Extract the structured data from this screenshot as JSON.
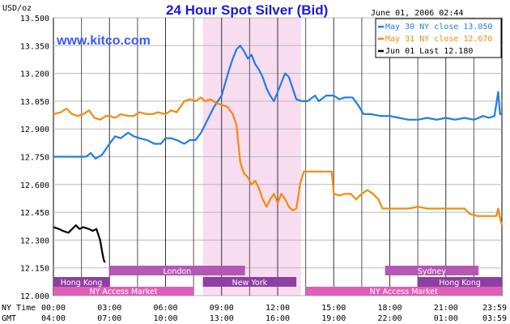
{
  "header": {
    "unit_label": "USD/oz",
    "title": "24 Hour Spot Silver (Bid)",
    "timestamp": "June 01, 2006 02:44",
    "website": "www.kitco.com"
  },
  "chart_data": {
    "type": "line",
    "title": "24 Hour Spot Silver (Bid)",
    "ylabel": "USD/oz",
    "ylim": [
      12.0,
      13.5
    ],
    "y_ticks": [
      "13.500",
      "13.350",
      "13.200",
      "13.050",
      "12.900",
      "12.750",
      "12.600",
      "12.450",
      "12.300",
      "12.150",
      "12.000"
    ],
    "x_axis_labels": {
      "ny_time_label": "NY Time",
      "gmt_label": "GMT",
      "ny_time": [
        "00:00",
        "03:00",
        "06:00",
        "09:00",
        "12:00",
        "15:00",
        "18:00",
        "21:00",
        "23:59"
      ],
      "gmt": [
        "04:00",
        "07:00",
        "10:00",
        "13:00",
        "16:00",
        "19:00",
        "22:00",
        "01:00",
        "03:59"
      ]
    },
    "xlim_hours": [
      0,
      24
    ],
    "highlight_band_hours": [
      8.0,
      13.25
    ],
    "series": [
      {
        "name": "May 30 NY close 13.050",
        "color": "#1e7ee6",
        "points": [
          [
            0,
            12.75
          ],
          [
            1.0,
            12.75
          ],
          [
            1.75,
            12.75
          ],
          [
            2.0,
            12.77
          ],
          [
            2.25,
            12.74
          ],
          [
            2.6,
            12.76
          ],
          [
            3.0,
            12.82
          ],
          [
            3.3,
            12.86
          ],
          [
            3.6,
            12.85
          ],
          [
            4.0,
            12.88
          ],
          [
            4.3,
            12.86
          ],
          [
            4.6,
            12.85
          ],
          [
            5.0,
            12.84
          ],
          [
            5.4,
            12.82
          ],
          [
            5.75,
            12.82
          ],
          [
            6.0,
            12.85
          ],
          [
            6.3,
            12.85
          ],
          [
            6.6,
            12.84
          ],
          [
            7.0,
            12.82
          ],
          [
            7.3,
            12.84
          ],
          [
            7.6,
            12.84
          ],
          [
            7.9,
            12.88
          ],
          [
            8.1,
            12.92
          ],
          [
            8.4,
            12.98
          ],
          [
            8.6,
            13.02
          ],
          [
            8.8,
            13.05
          ],
          [
            9.0,
            13.08
          ],
          [
            9.2,
            13.15
          ],
          [
            9.4,
            13.22
          ],
          [
            9.6,
            13.28
          ],
          [
            9.8,
            13.33
          ],
          [
            10.0,
            13.35
          ],
          [
            10.2,
            13.32
          ],
          [
            10.4,
            13.28
          ],
          [
            10.6,
            13.3
          ],
          [
            10.8,
            13.25
          ],
          [
            11.0,
            13.22
          ],
          [
            11.2,
            13.18
          ],
          [
            11.4,
            13.12
          ],
          [
            11.6,
            13.08
          ],
          [
            11.8,
            13.05
          ],
          [
            12.0,
            13.1
          ],
          [
            12.2,
            13.15
          ],
          [
            12.4,
            13.2
          ],
          [
            12.6,
            13.18
          ],
          [
            12.8,
            13.12
          ],
          [
            13.0,
            13.06
          ],
          [
            13.3,
            13.05
          ],
          [
            13.6,
            13.05
          ],
          [
            14.0,
            13.08
          ],
          [
            14.2,
            13.05
          ],
          [
            14.6,
            13.08
          ],
          [
            15.0,
            13.08
          ],
          [
            15.3,
            13.06
          ],
          [
            15.6,
            13.07
          ],
          [
            16.0,
            13.07
          ],
          [
            16.3,
            13.03
          ],
          [
            16.6,
            12.98
          ],
          [
            17.0,
            12.98
          ],
          [
            17.5,
            12.97
          ],
          [
            18.0,
            12.97
          ],
          [
            18.5,
            12.96
          ],
          [
            19.0,
            12.95
          ],
          [
            19.5,
            12.95
          ],
          [
            20.0,
            12.96
          ],
          [
            20.5,
            12.95
          ],
          [
            21.0,
            12.96
          ],
          [
            21.5,
            12.95
          ],
          [
            22.0,
            12.96
          ],
          [
            22.5,
            12.95
          ],
          [
            23.0,
            12.97
          ],
          [
            23.3,
            12.96
          ],
          [
            23.6,
            12.97
          ],
          [
            23.8,
            13.1
          ],
          [
            23.9,
            12.98
          ],
          [
            24.0,
            12.98
          ]
        ]
      },
      {
        "name": "May 31 NY close 12.670",
        "color": "#f58a0b",
        "points": [
          [
            0,
            12.98
          ],
          [
            0.4,
            12.99
          ],
          [
            0.7,
            13.01
          ],
          [
            1.0,
            12.98
          ],
          [
            1.3,
            12.97
          ],
          [
            1.6,
            12.98
          ],
          [
            1.9,
            13.0
          ],
          [
            2.2,
            12.96
          ],
          [
            2.5,
            12.95
          ],
          [
            2.8,
            12.97
          ],
          [
            3.0,
            12.97
          ],
          [
            3.3,
            12.96
          ],
          [
            3.6,
            12.98
          ],
          [
            4.0,
            12.97
          ],
          [
            4.3,
            12.97
          ],
          [
            4.6,
            12.99
          ],
          [
            5.0,
            12.98
          ],
          [
            5.3,
            12.98
          ],
          [
            5.6,
            12.99
          ],
          [
            6.0,
            12.98
          ],
          [
            6.3,
            13.0
          ],
          [
            6.6,
            12.99
          ],
          [
            7.0,
            13.05
          ],
          [
            7.3,
            13.06
          ],
          [
            7.6,
            13.05
          ],
          [
            7.9,
            13.07
          ],
          [
            8.1,
            13.05
          ],
          [
            8.4,
            13.06
          ],
          [
            8.7,
            13.04
          ],
          [
            9.0,
            13.03
          ],
          [
            9.3,
            13.02
          ],
          [
            9.6,
            12.98
          ],
          [
            9.8,
            12.92
          ],
          [
            10.0,
            12.72
          ],
          [
            10.2,
            12.66
          ],
          [
            10.4,
            12.64
          ],
          [
            10.6,
            12.6
          ],
          [
            10.8,
            12.62
          ],
          [
            11.0,
            12.58
          ],
          [
            11.2,
            12.52
          ],
          [
            11.4,
            12.48
          ],
          [
            11.6,
            12.52
          ],
          [
            11.8,
            12.55
          ],
          [
            12.0,
            12.5
          ],
          [
            12.2,
            12.55
          ],
          [
            12.4,
            12.52
          ],
          [
            12.6,
            12.48
          ],
          [
            12.8,
            12.46
          ],
          [
            13.0,
            12.47
          ],
          [
            13.2,
            12.6
          ],
          [
            13.4,
            12.67
          ],
          [
            13.7,
            12.67
          ],
          [
            14.0,
            12.67
          ],
          [
            14.5,
            12.67
          ],
          [
            14.9,
            12.67
          ],
          [
            15.0,
            12.55
          ],
          [
            15.3,
            12.54
          ],
          [
            15.6,
            12.55
          ],
          [
            15.9,
            12.55
          ],
          [
            16.2,
            12.52
          ],
          [
            16.5,
            12.55
          ],
          [
            16.8,
            12.57
          ],
          [
            17.1,
            12.55
          ],
          [
            17.4,
            12.52
          ],
          [
            17.6,
            12.47
          ],
          [
            18.0,
            12.47
          ],
          [
            18.5,
            12.47
          ],
          [
            19.0,
            12.47
          ],
          [
            19.5,
            12.48
          ],
          [
            20.0,
            12.47
          ],
          [
            20.5,
            12.47
          ],
          [
            21.0,
            12.47
          ],
          [
            21.5,
            12.47
          ],
          [
            22.0,
            12.47
          ],
          [
            22.3,
            12.44
          ],
          [
            22.7,
            12.43
          ],
          [
            23.0,
            12.43
          ],
          [
            23.4,
            12.43
          ],
          [
            23.7,
            12.43
          ],
          [
            23.8,
            12.47
          ],
          [
            23.9,
            12.42
          ],
          [
            24.0,
            12.38
          ]
        ]
      },
      {
        "name": "Jun 01 Last 12.180",
        "color": "#000000",
        "points": [
          [
            0,
            12.37
          ],
          [
            0.3,
            12.36
          ],
          [
            0.5,
            12.35
          ],
          [
            0.8,
            12.34
          ],
          [
            1.0,
            12.36
          ],
          [
            1.2,
            12.38
          ],
          [
            1.4,
            12.36
          ],
          [
            1.6,
            12.37
          ],
          [
            1.9,
            12.36
          ],
          [
            2.1,
            12.35
          ],
          [
            2.3,
            12.36
          ],
          [
            2.5,
            12.3
          ],
          [
            2.6,
            12.24
          ],
          [
            2.7,
            12.19
          ],
          [
            2.77,
            12.18
          ]
        ]
      }
    ],
    "sessions": {
      "row1": [
        {
          "name": "London",
          "start": 3.0,
          "end": 10.25,
          "color": "#b657b6"
        },
        {
          "name": "Sydney",
          "start": 17.75,
          "end": 22.75,
          "color": "#b657b6"
        }
      ],
      "row2": [
        {
          "name": "Hong Kong",
          "start": 0.0,
          "end": 3.0,
          "color": "#8e3fa3"
        },
        {
          "name": "New York",
          "start": 8.0,
          "end": 13.0,
          "color": "#8e3fa3"
        },
        {
          "name": "Hong Kong",
          "start": 19.5,
          "end": 24.0,
          "color": "#8e3fa3"
        }
      ],
      "row3": [
        {
          "name": "NY Access Market",
          "start": 0.0,
          "end": 7.5,
          "color": "#e05fb8"
        },
        {
          "name": "NY Access Market",
          "start": 13.5,
          "end": 24.0,
          "color": "#e05fb8"
        }
      ]
    }
  }
}
